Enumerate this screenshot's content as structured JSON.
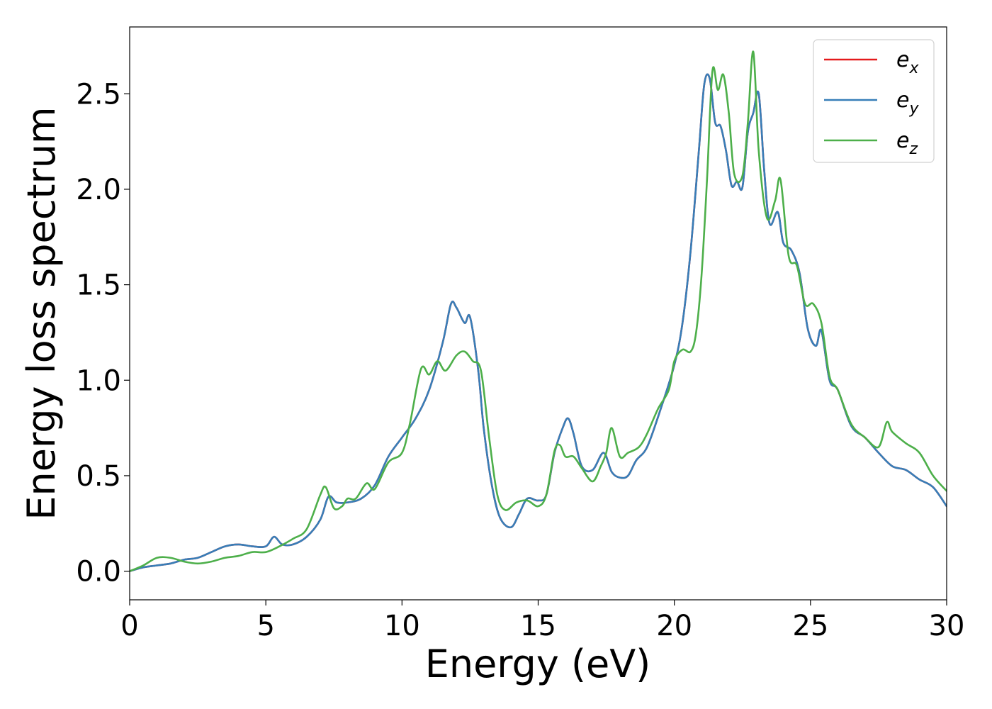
{
  "chart_data": {
    "type": "line",
    "xlabel": "Energy (eV)",
    "ylabel": "Energy loss spectrum",
    "xlim": [
      0,
      30
    ],
    "ylim": [
      -0.15,
      2.85
    ],
    "xticks": [
      0,
      5,
      10,
      15,
      20,
      25,
      30
    ],
    "xtick_labels": [
      "0",
      "5",
      "10",
      "15",
      "20",
      "25",
      "30"
    ],
    "yticks": [
      0.0,
      0.5,
      1.0,
      1.5,
      2.0,
      2.5
    ],
    "ytick_labels": [
      "0.0",
      "0.5",
      "1.0",
      "1.5",
      "2.0",
      "2.5"
    ],
    "grid": false,
    "legend_position": "top-right",
    "series": [
      {
        "name": "e",
        "subscript": "x",
        "color": "#e41a1c",
        "x": [
          0,
          0.5,
          1.0,
          1.5,
          2.0,
          2.5,
          3.0,
          3.5,
          4.0,
          4.5,
          5.0,
          5.3,
          5.6,
          6.0,
          6.5,
          7.0,
          7.3,
          7.6,
          8.0,
          8.5,
          9.0,
          9.5,
          10.0,
          10.5,
          11.0,
          11.5,
          11.8,
          12.0,
          12.3,
          12.5,
          12.8,
          13.0,
          13.3,
          13.6,
          14.0,
          14.3,
          14.6,
          15.0,
          15.3,
          15.6,
          15.9,
          16.1,
          16.3,
          16.6,
          17.0,
          17.4,
          17.7,
          18.0,
          18.3,
          18.6,
          19.0,
          19.5,
          20.0,
          20.3,
          20.6,
          20.9,
          21.1,
          21.3,
          21.5,
          21.7,
          21.9,
          22.1,
          22.3,
          22.5,
          22.7,
          22.9,
          23.1,
          23.3,
          23.5,
          23.8,
          24.0,
          24.3,
          24.6,
          24.9,
          25.2,
          25.4,
          25.7,
          26.0,
          26.5,
          27.0,
          27.5,
          28.0,
          28.5,
          29.0,
          29.5,
          30.0
        ],
        "y": [
          0.0,
          0.02,
          0.03,
          0.04,
          0.06,
          0.07,
          0.1,
          0.13,
          0.14,
          0.13,
          0.13,
          0.18,
          0.14,
          0.14,
          0.18,
          0.27,
          0.39,
          0.36,
          0.36,
          0.38,
          0.45,
          0.6,
          0.7,
          0.8,
          0.95,
          1.2,
          1.4,
          1.38,
          1.3,
          1.33,
          1.05,
          0.75,
          0.45,
          0.28,
          0.23,
          0.3,
          0.38,
          0.37,
          0.4,
          0.62,
          0.75,
          0.8,
          0.72,
          0.55,
          0.53,
          0.62,
          0.52,
          0.49,
          0.5,
          0.58,
          0.65,
          0.85,
          1.08,
          1.3,
          1.68,
          2.2,
          2.55,
          2.58,
          2.35,
          2.33,
          2.2,
          2.02,
          2.04,
          2.01,
          2.3,
          2.4,
          2.5,
          2.1,
          1.82,
          1.88,
          1.72,
          1.68,
          1.56,
          1.27,
          1.18,
          1.26,
          1.0,
          0.95,
          0.76,
          0.7,
          0.62,
          0.55,
          0.53,
          0.48,
          0.44,
          0.34
        ]
      },
      {
        "name": "e",
        "subscript": "y",
        "color": "#377eb8",
        "x": [
          0,
          0.5,
          1.0,
          1.5,
          2.0,
          2.5,
          3.0,
          3.5,
          4.0,
          4.5,
          5.0,
          5.3,
          5.6,
          6.0,
          6.5,
          7.0,
          7.3,
          7.6,
          8.0,
          8.5,
          9.0,
          9.5,
          10.0,
          10.5,
          11.0,
          11.5,
          11.8,
          12.0,
          12.3,
          12.5,
          12.8,
          13.0,
          13.3,
          13.6,
          14.0,
          14.3,
          14.6,
          15.0,
          15.3,
          15.6,
          15.9,
          16.1,
          16.3,
          16.6,
          17.0,
          17.4,
          17.7,
          18.0,
          18.3,
          18.6,
          19.0,
          19.5,
          20.0,
          20.3,
          20.6,
          20.9,
          21.1,
          21.3,
          21.5,
          21.7,
          21.9,
          22.1,
          22.3,
          22.5,
          22.7,
          22.9,
          23.1,
          23.3,
          23.5,
          23.8,
          24.0,
          24.3,
          24.6,
          24.9,
          25.2,
          25.4,
          25.7,
          26.0,
          26.5,
          27.0,
          27.5,
          28.0,
          28.5,
          29.0,
          29.5,
          30.0
        ],
        "y": [
          0.0,
          0.02,
          0.03,
          0.04,
          0.06,
          0.07,
          0.1,
          0.13,
          0.14,
          0.13,
          0.13,
          0.18,
          0.14,
          0.14,
          0.18,
          0.27,
          0.39,
          0.36,
          0.36,
          0.38,
          0.45,
          0.6,
          0.7,
          0.8,
          0.95,
          1.2,
          1.4,
          1.38,
          1.3,
          1.33,
          1.05,
          0.75,
          0.45,
          0.28,
          0.23,
          0.3,
          0.38,
          0.37,
          0.4,
          0.62,
          0.75,
          0.8,
          0.72,
          0.55,
          0.53,
          0.62,
          0.52,
          0.49,
          0.5,
          0.58,
          0.65,
          0.85,
          1.08,
          1.3,
          1.68,
          2.2,
          2.55,
          2.58,
          2.35,
          2.33,
          2.2,
          2.02,
          2.04,
          2.01,
          2.3,
          2.4,
          2.5,
          2.1,
          1.82,
          1.88,
          1.72,
          1.68,
          1.56,
          1.27,
          1.18,
          1.26,
          1.0,
          0.95,
          0.76,
          0.7,
          0.62,
          0.55,
          0.53,
          0.48,
          0.44,
          0.34
        ]
      },
      {
        "name": "e",
        "subscript": "z",
        "color": "#4daf4a",
        "x": [
          0,
          0.5,
          1.0,
          1.5,
          2.0,
          2.5,
          3.0,
          3.5,
          4.0,
          4.5,
          5.0,
          5.5,
          6.0,
          6.5,
          7.0,
          7.2,
          7.5,
          7.8,
          8.0,
          8.3,
          8.7,
          9.0,
          9.5,
          10.0,
          10.3,
          10.7,
          11.0,
          11.3,
          11.6,
          12.0,
          12.3,
          12.6,
          12.9,
          13.2,
          13.5,
          13.8,
          14.2,
          14.6,
          15.0,
          15.3,
          15.6,
          15.8,
          16.0,
          16.3,
          16.6,
          17.0,
          17.3,
          17.5,
          17.7,
          18.0,
          18.3,
          18.7,
          19.0,
          19.4,
          19.8,
          20.0,
          20.3,
          20.6,
          20.8,
          21.0,
          21.2,
          21.4,
          21.6,
          21.8,
          22.0,
          22.2,
          22.5,
          22.7,
          22.9,
          23.1,
          23.4,
          23.7,
          23.9,
          24.2,
          24.5,
          24.8,
          25.1,
          25.4,
          25.7,
          26.0,
          26.5,
          27.0,
          27.5,
          27.8,
          28.0,
          28.5,
          29.0,
          29.5,
          30.0
        ],
        "y": [
          0.0,
          0.03,
          0.07,
          0.07,
          0.05,
          0.04,
          0.05,
          0.07,
          0.08,
          0.1,
          0.1,
          0.13,
          0.17,
          0.22,
          0.4,
          0.44,
          0.33,
          0.34,
          0.38,
          0.38,
          0.46,
          0.43,
          0.57,
          0.62,
          0.78,
          1.06,
          1.03,
          1.1,
          1.05,
          1.13,
          1.15,
          1.1,
          1.05,
          0.7,
          0.4,
          0.32,
          0.36,
          0.37,
          0.34,
          0.4,
          0.63,
          0.66,
          0.6,
          0.6,
          0.54,
          0.47,
          0.55,
          0.62,
          0.75,
          0.6,
          0.62,
          0.65,
          0.72,
          0.85,
          0.95,
          1.1,
          1.16,
          1.15,
          1.25,
          1.55,
          2.05,
          2.62,
          2.52,
          2.6,
          2.4,
          2.08,
          2.07,
          2.35,
          2.72,
          2.2,
          1.85,
          1.94,
          2.05,
          1.65,
          1.6,
          1.4,
          1.4,
          1.3,
          1.02,
          0.95,
          0.77,
          0.7,
          0.65,
          0.78,
          0.73,
          0.67,
          0.62,
          0.5,
          0.42
        ]
      }
    ]
  },
  "legend": {
    "entries": [
      {
        "base": "e",
        "sub": "x"
      },
      {
        "base": "e",
        "sub": "y"
      },
      {
        "base": "e",
        "sub": "z"
      }
    ]
  }
}
